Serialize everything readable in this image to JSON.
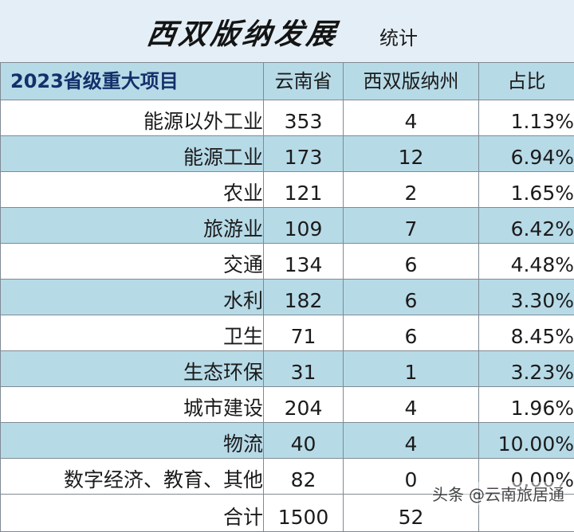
{
  "header": {
    "title": "西双版纳发展",
    "subtitle": "统计"
  },
  "table": {
    "columns": [
      "2023省级重大项目",
      "云南省",
      "西双版纳州",
      "占比"
    ],
    "rows": [
      {
        "category": "能源以外工业",
        "yunnan": "353",
        "xsbn": "4",
        "ratio": "1.13%"
      },
      {
        "category": "能源工业",
        "yunnan": "173",
        "xsbn": "12",
        "ratio": "6.94%"
      },
      {
        "category": "农业",
        "yunnan": "121",
        "xsbn": "2",
        "ratio": "1.65%"
      },
      {
        "category": "旅游业",
        "yunnan": "109",
        "xsbn": "7",
        "ratio": "6.42%"
      },
      {
        "category": "交通",
        "yunnan": "134",
        "xsbn": "6",
        "ratio": "4.48%"
      },
      {
        "category": "水利",
        "yunnan": "182",
        "xsbn": "6",
        "ratio": "3.30%"
      },
      {
        "category": "卫生",
        "yunnan": "71",
        "xsbn": "6",
        "ratio": "8.45%"
      },
      {
        "category": "生态环保",
        "yunnan": "31",
        "xsbn": "1",
        "ratio": "3.23%"
      },
      {
        "category": "城市建设",
        "yunnan": "204",
        "xsbn": "4",
        "ratio": "1.96%"
      },
      {
        "category": "物流",
        "yunnan": "40",
        "xsbn": "4",
        "ratio": "10.00%"
      },
      {
        "category": "数字经济、教育、其他",
        "yunnan": "82",
        "xsbn": "0",
        "ratio": "0.00%"
      }
    ],
    "total": {
      "category": "合计",
      "yunnan": "1500",
      "xsbn": "52"
    }
  },
  "watermark": {
    "source": "头条",
    "handle": "@云南旅居通"
  },
  "colors": {
    "band": "#b7dae7",
    "header_bg": "#e4eef6",
    "header_text": "#14306a",
    "border": "#7f8a94"
  }
}
